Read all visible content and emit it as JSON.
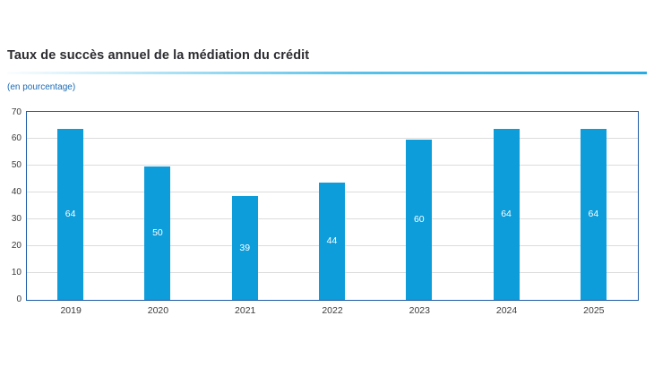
{
  "header": {
    "title": "Taux de succès annuel de la médiation du crédit",
    "subtitle": "(en pourcentage)"
  },
  "colors": {
    "bar": "#0d9dda",
    "plot_border": "#1d5ca8",
    "gridline": "#dcdcdc",
    "title_text": "#2b2b30",
    "subtitle_text": "#1b6bb5",
    "axis_text": "#3a3a3a",
    "rule_accent": "#29abe2",
    "bar_label_text": "#ffffff"
  },
  "chart_data": {
    "type": "bar",
    "title": "Taux de succès annuel de la médiation du crédit",
    "subtitle": "(en pourcentage)",
    "categories": [
      "2019",
      "2020",
      "2021",
      "2022",
      "2023",
      "2024",
      "2025"
    ],
    "values": [
      64,
      50,
      39,
      44,
      60,
      64,
      64
    ],
    "bar_labels": [
      "64",
      "50",
      "39",
      "44",
      "60",
      "64",
      "64"
    ],
    "xlabel": "",
    "ylabel": "",
    "ylim": [
      0,
      70
    ],
    "yticks": [
      0,
      10,
      20,
      30,
      40,
      50,
      60,
      70
    ],
    "grid": true,
    "legend_position": "none"
  }
}
